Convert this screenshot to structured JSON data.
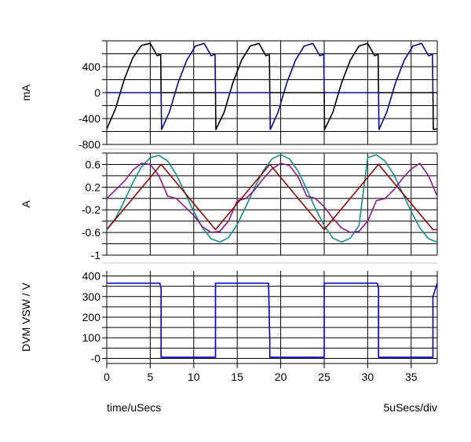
{
  "chart_data": [
    {
      "type": "line",
      "ylabel": "mA",
      "ylim": [
        -800,
        800
      ],
      "yticks": [
        400,
        0,
        -400,
        -800
      ],
      "xlim": [
        0,
        38
      ],
      "grid": true,
      "series": [
        {
          "color": "#000000",
          "x": [
            0,
            1,
            2,
            3,
            4,
            5,
            5.8,
            6.2,
            6.25,
            7,
            12.5,
            12.55,
            13.5,
            14.5,
            15.5,
            16.5,
            17.5,
            18.3,
            18.7,
            18.75,
            19.5,
            25,
            25.05,
            26,
            27,
            28,
            29,
            30,
            30.8,
            31.2,
            31.25,
            32,
            37.5,
            37.55,
            38
          ],
          "y": [
            -560,
            -250,
            200,
            540,
            730,
            760,
            570,
            590,
            0,
            0,
            0,
            -570,
            -300,
            150,
            500,
            720,
            760,
            570,
            590,
            0,
            0,
            0,
            -570,
            -300,
            150,
            500,
            720,
            760,
            570,
            590,
            0,
            0,
            0,
            -570,
            -560
          ]
        },
        {
          "color": "#0b0b8f",
          "x": [
            0,
            6.25,
            6.3,
            7.2,
            8.2,
            9.2,
            10.2,
            11.2,
            12,
            12.45,
            12.5,
            18.75,
            18.8,
            19.7,
            20.7,
            21.7,
            22.7,
            23.7,
            24.5,
            24.95,
            25,
            31.25,
            31.3,
            32.2,
            33.2,
            34.2,
            35.2,
            36.2,
            37,
            37.45,
            37.5,
            38
          ],
          "y": [
            0,
            0,
            -570,
            -300,
            150,
            500,
            720,
            760,
            570,
            590,
            0,
            0,
            -570,
            -300,
            150,
            500,
            720,
            760,
            570,
            590,
            0,
            0,
            -570,
            -300,
            150,
            500,
            720,
            760,
            570,
            590,
            0,
            0
          ]
        }
      ]
    },
    {
      "type": "line",
      "ylabel": "A",
      "ylim": [
        -1,
        0.8
      ],
      "yticks": [
        0.6,
        0.2,
        -0.2,
        -0.6,
        -1
      ],
      "xlim": [
        0,
        38
      ],
      "grid": true,
      "series": [
        {
          "color": "#1a8a8a",
          "x": [
            0,
            1,
            2,
            3,
            4,
            5,
            6,
            7,
            8,
            9,
            10,
            11,
            12,
            13,
            14,
            15,
            16,
            17,
            18,
            19,
            20,
            21,
            22,
            23,
            24,
            25,
            26,
            27,
            28,
            29,
            30,
            31,
            32,
            33,
            34,
            35,
            36,
            37,
            38
          ],
          "y": [
            -0.55,
            -0.35,
            -0.05,
            0.28,
            0.56,
            0.72,
            0.76,
            0.66,
            0.42,
            0.1,
            -0.23,
            -0.52,
            -0.71,
            -0.77,
            -0.69,
            -0.46,
            -0.14,
            0.19,
            0.49,
            0.7,
            0.77,
            0.7,
            0.48,
            0.16,
            -0.18,
            -0.48,
            -0.7,
            -0.77,
            -0.7,
            -0.48,
            0.72,
            0.77,
            0.66,
            0.42,
            0.1,
            -0.23,
            -0.52,
            -0.71,
            -0.77
          ]
        },
        {
          "color": "#8b1a8b",
          "x": [
            0,
            1,
            2,
            3,
            4,
            5,
            6,
            7,
            8,
            9,
            10,
            11,
            12,
            13,
            14,
            15,
            16,
            17,
            18,
            19,
            20,
            21,
            22,
            23,
            24,
            25,
            26,
            27,
            28,
            29,
            30,
            31,
            32,
            33,
            34,
            35,
            36,
            37,
            38
          ],
          "y": [
            0,
            0.15,
            0.3,
            0.5,
            0.62,
            0.6,
            0.4,
            0.04,
            0.0,
            -0.15,
            -0.3,
            -0.5,
            -0.6,
            -0.58,
            -0.4,
            -0.04,
            0.0,
            0.15,
            0.35,
            0.52,
            0.62,
            0.58,
            0.38,
            0.04,
            0.0,
            -0.15,
            -0.35,
            -0.52,
            -0.6,
            -0.58,
            -0.4,
            -0.04,
            0.0,
            0.15,
            0.35,
            0.52,
            0.62,
            0.4,
            0.04
          ]
        },
        {
          "color": "#8b0a0a",
          "x": [
            0,
            6.25,
            12.5,
            18.75,
            25,
            31.25,
            37.5,
            38
          ],
          "y": [
            -0.55,
            0.6,
            -0.55,
            0.6,
            -0.55,
            0.6,
            -0.55,
            -0.55
          ]
        }
      ]
    },
    {
      "type": "line",
      "ylabel": "DVM VSW / V",
      "ylim": [
        -25,
        425
      ],
      "yticks": [
        400,
        300,
        200,
        100,
        0
      ],
      "ytick_labels": [
        "400",
        "300",
        "200",
        "100",
        "-0"
      ],
      "xlim": [
        0,
        38
      ],
      "xticks": [
        0,
        5,
        10,
        15,
        20,
        25,
        30,
        35
      ],
      "grid": true,
      "series": [
        {
          "color": "#0000cc",
          "x": [
            0,
            6.1,
            6.25,
            6.25,
            12.5,
            12.5,
            18.6,
            18.75,
            18.75,
            25,
            25,
            31.1,
            31.25,
            31.25,
            37.5,
            37.5,
            38
          ],
          "y": [
            365,
            365,
            340,
            5,
            5,
            365,
            365,
            80,
            5,
            5,
            365,
            365,
            340,
            5,
            5,
            300,
            365
          ]
        }
      ]
    }
  ],
  "footer": {
    "xlabel": "time/uSecs",
    "scale": "5uSecs/div"
  }
}
